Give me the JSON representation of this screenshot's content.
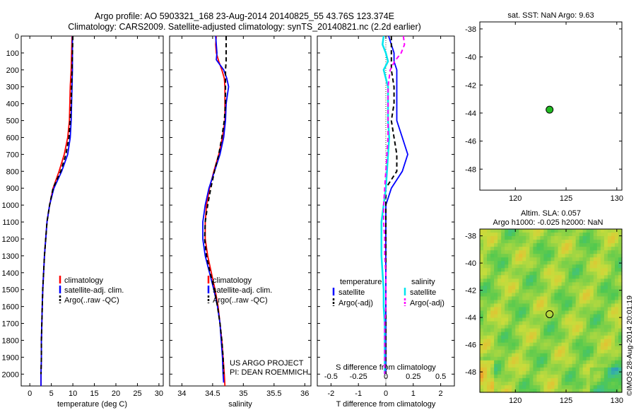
{
  "title_line1": "Argo profile: AO 5903321_168 23-Aug-2014 20140825_55 43.76S 123.374E",
  "title_line2": "Climatology: CARS2009. Satellite-adjusted climatology: synTS_20140821.nc (2.2d earlier)",
  "side_label": "©IMOS 28-Aug-2014 20:01:19",
  "credit": [
    "US ARGO PROJECT",
    "PI: DEAN ROEMMICH"
  ],
  "colors": {
    "red": "#ff0000",
    "blue": "#0000ff",
    "black": "#000000",
    "cyan": "#00e5ee",
    "magenta": "#ff00ff",
    "green": "#22bb22"
  },
  "chart_data": [
    {
      "type": "line",
      "xlabel": "temperature (deg C)",
      "xlim": [
        -2,
        31
      ],
      "xticks": [
        0,
        5,
        10,
        15,
        20,
        25,
        30
      ],
      "ylim": [
        2070,
        0
      ],
      "yticks": [
        0,
        100,
        200,
        300,
        400,
        500,
        600,
        700,
        800,
        900,
        1000,
        1100,
        1200,
        1300,
        1400,
        1500,
        1600,
        1700,
        1800,
        1900,
        2000
      ],
      "legend": [
        "climatology",
        "satellite-adj. clim.",
        "Argo(..raw -QC)"
      ],
      "legend_position": "lower-right",
      "series": [
        {
          "name": "climatology",
          "color": "red",
          "dash": "solid",
          "depth": [
            0,
            100,
            200,
            300,
            400,
            500,
            600,
            700,
            800,
            900,
            1000,
            1100,
            1200,
            1300,
            1400,
            1500,
            1600,
            1700,
            1800,
            1900,
            2000,
            2070
          ],
          "values": [
            9.8,
            9.7,
            9.6,
            9.4,
            9.3,
            9.2,
            8.8,
            8.0,
            6.8,
            5.4,
            4.6,
            4.0,
            3.7,
            3.4,
            3.2,
            3.0,
            2.9,
            2.8,
            2.7,
            2.7,
            2.6,
            2.6
          ]
        },
        {
          "name": "satellite-adj. clim.",
          "color": "blue",
          "dash": "solid",
          "depth": [
            0,
            100,
            200,
            300,
            400,
            500,
            600,
            700,
            800,
            900,
            1000,
            1100,
            1200,
            1300,
            1400,
            1500,
            1600,
            1700,
            1800,
            1900,
            2000,
            2070
          ],
          "values": [
            9.9,
            9.9,
            9.9,
            9.8,
            9.7,
            9.6,
            9.4,
            8.8,
            7.4,
            5.6,
            4.6,
            4.0,
            3.7,
            3.4,
            3.2,
            3.0,
            2.9,
            2.8,
            2.7,
            2.7,
            2.6,
            2.6
          ]
        },
        {
          "name": "Argo(..raw -QC)",
          "color": "black",
          "dash": "dashed",
          "depth": [
            0,
            100,
            200,
            300,
            400,
            500,
            600,
            700,
            800,
            900,
            1000,
            1100,
            1200,
            1300,
            1400,
            1500,
            1600,
            1700,
            1800,
            1900,
            2000
          ],
          "values": [
            10.0,
            9.9,
            9.8,
            9.7,
            9.6,
            9.4,
            9.1,
            8.4,
            7.2,
            5.4,
            4.6,
            4.0,
            3.7,
            3.4,
            3.2,
            3.0,
            2.9,
            2.8,
            2.7,
            2.7,
            2.6
          ]
        }
      ]
    },
    {
      "type": "line",
      "xlabel": "salinity",
      "xlim": [
        33.8,
        36.1
      ],
      "xticks": [
        34,
        34.5,
        35,
        35.5,
        36
      ],
      "ylim": [
        2070,
        0
      ],
      "legend": [
        "climatology",
        "satellite-adj. clim.",
        "Argo(..raw -QC)"
      ],
      "legend_position": "lower-right",
      "series": [
        {
          "name": "climatology",
          "color": "red",
          "dash": "solid",
          "depth": [
            0,
            50,
            100,
            150,
            200,
            250,
            300,
            400,
            500,
            600,
            700,
            800,
            900,
            1000,
            1100,
            1200,
            1300,
            1400,
            1500,
            1600,
            1700,
            1800,
            1900,
            2000,
            2070
          ],
          "values": [
            34.56,
            34.55,
            34.56,
            34.6,
            34.65,
            34.69,
            34.7,
            34.7,
            34.7,
            34.66,
            34.6,
            34.52,
            34.45,
            34.4,
            34.38,
            34.38,
            34.42,
            34.48,
            34.54,
            34.59,
            34.62,
            34.65,
            34.67,
            34.69,
            34.7
          ]
        },
        {
          "name": "satellite-adj. clim.",
          "color": "blue",
          "dash": "solid",
          "depth": [
            0,
            50,
            100,
            140,
            170,
            200,
            250,
            300,
            350,
            400,
            500,
            600,
            700,
            800,
            900,
            1000,
            1100,
            1200,
            1300,
            1400,
            1500,
            1600,
            1700,
            1800,
            1900,
            2000,
            2050
          ],
          "values": [
            34.55,
            34.56,
            34.57,
            34.56,
            34.62,
            34.68,
            34.73,
            34.76,
            34.74,
            34.72,
            34.71,
            34.68,
            34.62,
            34.53,
            34.44,
            34.38,
            34.34,
            34.34,
            34.38,
            34.45,
            34.52,
            34.58,
            34.62,
            34.64,
            34.66,
            34.67,
            34.68
          ]
        },
        {
          "name": "Argo(..raw -QC)",
          "color": "black",
          "dash": "dashed",
          "depth": [
            0,
            100,
            150,
            200,
            300,
            400,
            500,
            600,
            700,
            800,
            900,
            1000,
            1100,
            1200,
            1300,
            1400,
            1500,
            1600,
            1700,
            1800,
            1900,
            2000
          ],
          "values": [
            34.72,
            34.72,
            34.72,
            34.71,
            34.71,
            34.71,
            34.69,
            34.65,
            34.6,
            34.53,
            34.47,
            34.42,
            34.38,
            34.37,
            34.4,
            34.46,
            34.53,
            34.58,
            34.62,
            34.65,
            34.67,
            34.68
          ]
        }
      ]
    },
    {
      "type": "line",
      "xlabel": "T difference from climatology",
      "xlabel_top": "S difference from climatology",
      "xlim": [
        -2.5,
        2.5
      ],
      "xticks": [
        -2,
        -1,
        0,
        1,
        2
      ],
      "xticks_top": [
        -0.5,
        -0.25,
        0,
        0.25,
        0.5
      ],
      "xticks_top_labels": [
        "-0.5",
        "-0.25",
        "0",
        "0.25",
        "0.5"
      ],
      "ylim": [
        2070,
        0
      ],
      "legend_titles": [
        "temperature",
        "salinity"
      ],
      "legend": [
        "satellite",
        "Argo(-adj)",
        "satellite",
        "Argo(-adj)"
      ],
      "legend_position": "lower-center",
      "series": [
        {
          "name": "temperature satellite",
          "color": "blue",
          "dash": "solid",
          "depth": [
            0,
            50,
            100,
            150,
            200,
            300,
            400,
            500,
            600,
            700,
            800,
            900,
            1000,
            1100,
            1200,
            1300,
            1400,
            1500,
            1600,
            1700,
            1800,
            1900,
            2000
          ],
          "values": [
            0.1,
            0.2,
            0.3,
            0.3,
            0.4,
            0.4,
            0.4,
            0.4,
            0.6,
            0.8,
            0.6,
            0.2,
            0.0,
            0.0,
            0.0,
            0.0,
            0.0,
            0.0,
            0.0,
            0.0,
            0.0,
            0.0,
            0.0
          ]
        },
        {
          "name": "temperature Argo(-adj)",
          "color": "black",
          "dash": "dashed",
          "depth": [
            0,
            100,
            200,
            300,
            400,
            500,
            600,
            700,
            800,
            900,
            1000,
            1100,
            1200,
            1300,
            1400,
            1500,
            1600,
            1700,
            1800,
            1900,
            2000
          ],
          "values": [
            0.2,
            0.2,
            0.2,
            0.3,
            0.3,
            0.2,
            0.3,
            0.4,
            0.4,
            0.0,
            0.0,
            0.0,
            0.0,
            0.0,
            0.0,
            0.0,
            0.0,
            0.0,
            0.0,
            0.0,
            0.0
          ]
        },
        {
          "name": "salinity satellite",
          "color": "cyan",
          "dash": "solid",
          "depth": [
            0,
            50,
            100,
            150,
            200,
            300,
            400,
            500,
            600,
            700,
            800,
            900,
            1000,
            1100,
            1200,
            1300,
            1400,
            1500,
            1600,
            1700,
            1800,
            1900,
            2000
          ],
          "values": [
            -0.02,
            -0.03,
            0.0,
            0.02,
            -0.02,
            0.02,
            0.02,
            0.02,
            0.03,
            0.02,
            0.01,
            0.0,
            -0.02,
            -0.04,
            -0.04,
            -0.04,
            -0.03,
            -0.02,
            -0.02,
            -0.01,
            -0.01,
            -0.01,
            -0.01
          ]
        },
        {
          "name": "salinity Argo(-adj)",
          "color": "magenta",
          "dash": "dashed",
          "depth": [
            0,
            50,
            100,
            150,
            200,
            300,
            400,
            500,
            600,
            700,
            800,
            900,
            1000,
            1100,
            1200,
            1300,
            1400,
            1500,
            1600,
            1700,
            1800,
            1900,
            2000
          ],
          "values": [
            0.16,
            0.17,
            0.14,
            0.08,
            0.04,
            0.02,
            0.02,
            0.02,
            0.02,
            0.01,
            0.0,
            -0.01,
            -0.02,
            -0.02,
            -0.01,
            -0.01,
            0.0,
            0.0,
            0.0,
            -0.01,
            -0.01,
            -0.01,
            -0.01
          ]
        }
      ]
    },
    {
      "type": "scatter",
      "title": "sat. SST: NaN Argo: 9.63",
      "xlim": [
        116.5,
        130.5
      ],
      "ylim": [
        -49.5,
        -37.5
      ],
      "xticks": [
        120,
        125,
        130
      ],
      "yticks": [
        -38,
        -40,
        -42,
        -44,
        -46,
        -48
      ],
      "points": [
        {
          "lon": 123.374,
          "lat": -43.76,
          "color": "green"
        }
      ]
    },
    {
      "type": "heatmap",
      "title_line1": "Altim. SLA: 0.057",
      "title_line2": "Argo h1000: -0.025 h2000: NaN",
      "xlim": [
        116.5,
        130.5
      ],
      "ylim": [
        -49.5,
        -37.5
      ],
      "xticks": [
        120,
        125,
        130
      ],
      "yticks": [
        -38,
        -40,
        -42,
        -44,
        -46,
        -48
      ],
      "points": [
        {
          "lon": 123.374,
          "lat": -43.76
        }
      ]
    }
  ]
}
